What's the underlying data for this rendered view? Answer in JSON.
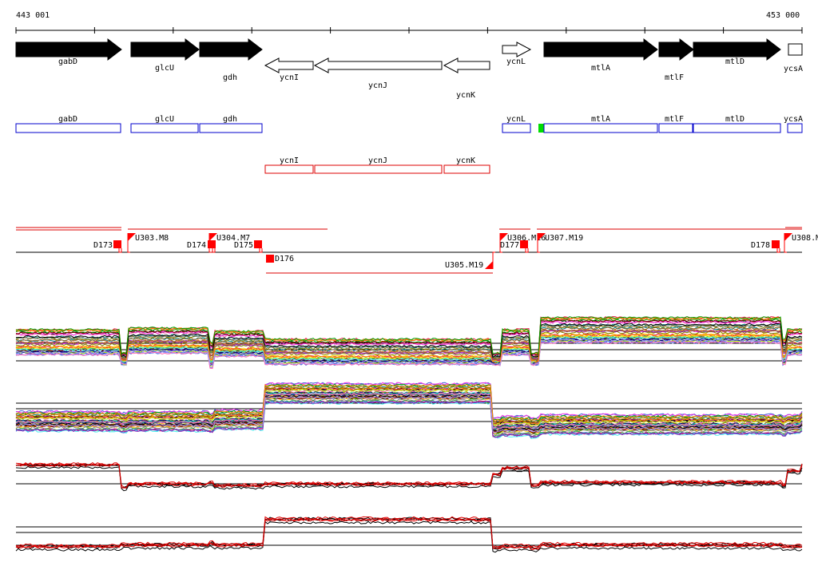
{
  "ruler": {
    "start": "443 001",
    "end": "453 000"
  },
  "genes": [
    {
      "name": "gabD",
      "strand": "+",
      "row": "upper"
    },
    {
      "name": "glcU",
      "strand": "+",
      "row": "upper"
    },
    {
      "name": "gdh",
      "strand": "+",
      "row": "upper"
    },
    {
      "name": "ycnI",
      "strand": "-",
      "row": "upper"
    },
    {
      "name": "ycnJ",
      "strand": "-",
      "row": "upper"
    },
    {
      "name": "ycnK",
      "strand": "-",
      "row": "upper"
    },
    {
      "name": "ycnL",
      "strand": "+",
      "row": "upper"
    },
    {
      "name": "mtlA",
      "strand": "+",
      "row": "upper"
    },
    {
      "name": "mtlF",
      "strand": "+",
      "row": "upper"
    },
    {
      "name": "mtlD",
      "strand": "+",
      "row": "upper"
    },
    {
      "name": "ycsA",
      "strand": "+",
      "row": "upper"
    }
  ],
  "forward_boxes": [
    "gabD",
    "glcU",
    "gdh",
    "ycnL",
    "mtlA",
    "mtlF",
    "mtlD",
    "ycsA"
  ],
  "reverse_boxes": [
    "ycnI",
    "ycnJ",
    "ycnK"
  ],
  "upstream_markers": [
    "U303.M8",
    "U304.M7",
    "U305.M19",
    "U306.M16",
    "U307.M19",
    "U308.M"
  ],
  "downstream_markers": [
    "D173",
    "D174",
    "D175",
    "D176",
    "D177",
    "D178"
  ],
  "colors": {
    "gene_forward": "#000000",
    "gene_reverse": "#ffffff",
    "box_forward": "#0000cc",
    "box_reverse": "#dd0000",
    "marker": "#ff0000",
    "highlight": "#00dd00",
    "axis": "#000000"
  },
  "track_panels": [
    "panel-1",
    "panel-2",
    "panel-3",
    "panel-4"
  ]
}
